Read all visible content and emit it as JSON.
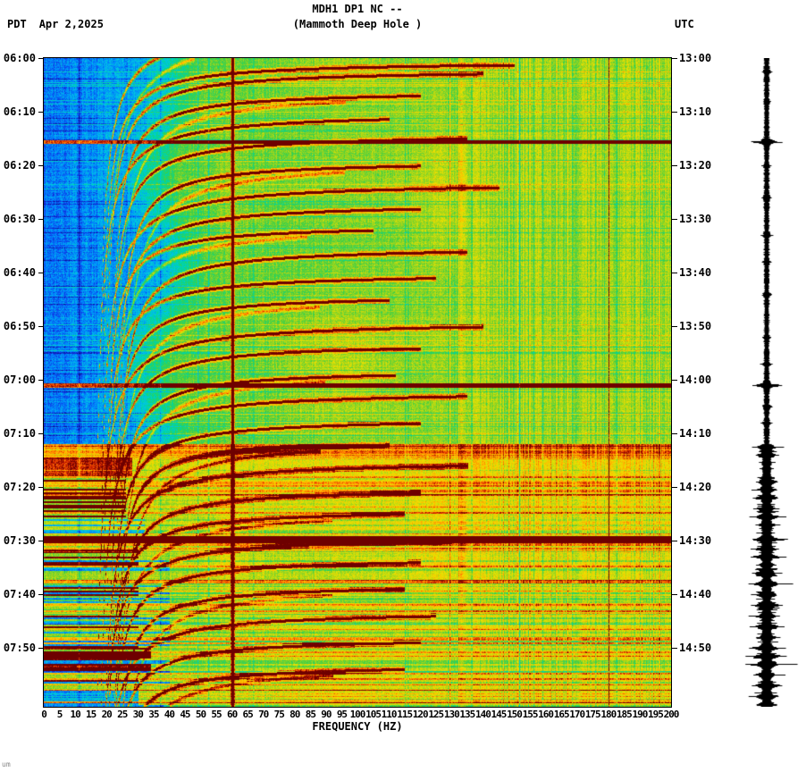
{
  "header": {
    "station": "MDH1 DP1 NC --",
    "subtitle": "(Mammoth Deep Hole )",
    "tz_left": "PDT",
    "date": "Apr 2,2025",
    "tz_right": "UTC"
  },
  "footer": {
    "note": "um"
  },
  "chart_data": {
    "type": "heatmap",
    "subtype": "seismic-spectrogram",
    "title": "MDH1 DP1 NC -- (Mammoth Deep Hole )",
    "xlabel": "FREQUENCY (HZ)",
    "x_range_hz": [
      0,
      200
    ],
    "x_ticks": [
      0,
      5,
      10,
      15,
      20,
      25,
      30,
      35,
      40,
      45,
      50,
      55,
      60,
      65,
      70,
      75,
      80,
      85,
      90,
      95,
      100,
      105,
      110,
      115,
      120,
      125,
      130,
      135,
      140,
      145,
      150,
      155,
      160,
      165,
      170,
      175,
      180,
      185,
      190,
      195,
      200
    ],
    "left_axis_timezone": "PDT",
    "right_axis_timezone": "UTC",
    "left_ticks": [
      "06:00",
      "06:10",
      "06:20",
      "06:30",
      "06:40",
      "06:50",
      "07:00",
      "07:10",
      "07:20",
      "07:30",
      "07:40",
      "07:50"
    ],
    "right_ticks": [
      "13:00",
      "13:10",
      "13:20",
      "13:30",
      "13:40",
      "13:50",
      "14:00",
      "14:10",
      "14:20",
      "14:30",
      "14:40",
      "14:50"
    ],
    "time_span_minutes": 121,
    "tick_interval_minutes": 10,
    "colormap": "jet",
    "features": {
      "mains_hum_line_hz": 60,
      "faint_vertical_line_hz": 180,
      "low_freq_quiet_band_hz": [
        0,
        28
      ],
      "active_period_start_minute": 72,
      "h_lines": [
        {
          "t": 15.6,
          "w": 0.3,
          "boost": 0.6
        },
        {
          "t": 61.0,
          "w": 0.35,
          "boost": 0.6
        },
        {
          "t": 89.8,
          "w": 0.65,
          "boost": 0.62
        }
      ]
    },
    "tremor_arcs": [
      {
        "t0": -6,
        "f0": 16,
        "k": 120,
        "fmax": 60
      },
      {
        "t0": 0.5,
        "f0": 17,
        "k": 100,
        "fmax": 150
      },
      {
        "t0": 2,
        "f0": 18,
        "k": 110,
        "fmax": 140
      },
      {
        "t0": 6,
        "f0": 20,
        "k": 100,
        "fmax": 120
      },
      {
        "t0": 10,
        "f0": 15,
        "k": 130,
        "fmax": 110
      },
      {
        "t0": 14,
        "f0": 19,
        "k": 115,
        "fmax": 135
      },
      {
        "t0": 19,
        "f0": 22,
        "k": 105,
        "fmax": 120
      },
      {
        "t0": 23,
        "f0": 16,
        "k": 140,
        "fmax": 145
      },
      {
        "t0": 27,
        "f0": 20,
        "k": 110,
        "fmax": 120
      },
      {
        "t0": 31,
        "f0": 18,
        "k": 95,
        "fmax": 105
      },
      {
        "t0": 35,
        "f0": 21,
        "k": 125,
        "fmax": 135
      },
      {
        "t0": 40,
        "f0": 17,
        "k": 110,
        "fmax": 125
      },
      {
        "t0": 44,
        "f0": 20,
        "k": 100,
        "fmax": 110
      },
      {
        "t0": 49,
        "f0": 15,
        "k": 135,
        "fmax": 140
      },
      {
        "t0": 53,
        "f0": 19,
        "k": 110,
        "fmax": 120
      },
      {
        "t0": 58,
        "f0": 21,
        "k": 100,
        "fmax": 112
      },
      {
        "t0": 62,
        "f0": 16,
        "k": 125,
        "fmax": 135
      },
      {
        "t0": 67,
        "f0": 19,
        "k": 110,
        "fmax": 120
      },
      {
        "t0": 71,
        "f0": 21,
        "k": 95,
        "fmax": 110
      },
      {
        "t0": 75,
        "f0": 17,
        "k": 120,
        "fmax": 135
      },
      {
        "t0": 80,
        "f0": 20,
        "k": 105,
        "fmax": 120
      },
      {
        "t0": 84,
        "f0": 18,
        "k": 100,
        "fmax": 115
      },
      {
        "t0": 89,
        "f0": 16,
        "k": 120,
        "fmax": 130
      },
      {
        "t0": 93,
        "f0": 19,
        "k": 105,
        "fmax": 120
      },
      {
        "t0": 98,
        "f0": 21,
        "k": 95,
        "fmax": 115
      },
      {
        "t0": 103,
        "f0": 17,
        "k": 115,
        "fmax": 125
      },
      {
        "t0": 108,
        "f0": 19,
        "k": 100,
        "fmax": 120
      },
      {
        "t0": 113,
        "f0": 20,
        "k": 95,
        "fmax": 115
      }
    ],
    "trace_spikes": [
      {
        "t": 2.5,
        "a": 4
      },
      {
        "t": 8,
        "a": 3
      },
      {
        "t": 15.6,
        "a": 26
      },
      {
        "t": 20,
        "a": 3
      },
      {
        "t": 26,
        "a": 4
      },
      {
        "t": 33,
        "a": 5
      },
      {
        "t": 38,
        "a": 3
      },
      {
        "t": 44,
        "a": 4
      },
      {
        "t": 52,
        "a": 3
      },
      {
        "t": 57,
        "a": 4
      },
      {
        "t": 61,
        "a": 24
      },
      {
        "t": 65,
        "a": 5
      },
      {
        "t": 68,
        "a": 4
      },
      {
        "t": 72.5,
        "a": 14
      },
      {
        "t": 74,
        "a": 10
      },
      {
        "t": 79,
        "a": 16
      },
      {
        "t": 80.5,
        "a": 12
      },
      {
        "t": 82,
        "a": 18
      },
      {
        "t": 84,
        "a": 14
      },
      {
        "t": 85.5,
        "a": 20
      },
      {
        "t": 87,
        "a": 12
      },
      {
        "t": 89.7,
        "a": 30
      },
      {
        "t": 91.5,
        "a": 16
      },
      {
        "t": 93,
        "a": 22
      },
      {
        "t": 94.5,
        "a": 12
      },
      {
        "t": 96,
        "a": 18
      },
      {
        "t": 98,
        "a": 25
      },
      {
        "t": 100,
        "a": 14
      },
      {
        "t": 102,
        "a": 20
      },
      {
        "t": 104,
        "a": 16
      },
      {
        "t": 106,
        "a": 22
      },
      {
        "t": 108,
        "a": 14
      },
      {
        "t": 110,
        "a": 28
      },
      {
        "t": 111.5,
        "a": 22
      },
      {
        "t": 113,
        "a": 30
      },
      {
        "t": 115,
        "a": 18
      },
      {
        "t": 117,
        "a": 24
      },
      {
        "t": 119,
        "a": 20
      },
      {
        "t": 120.5,
        "a": 14
      }
    ]
  }
}
